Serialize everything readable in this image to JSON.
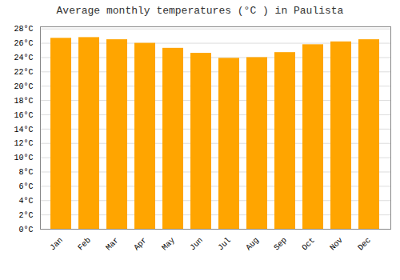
{
  "chart_data": {
    "type": "bar",
    "title": "Average monthly temperatures (°C ) in Paulista",
    "categories": [
      "Jan",
      "Feb",
      "Mar",
      "Apr",
      "May",
      "Jun",
      "Jul",
      "Aug",
      "Sep",
      "Oct",
      "Nov",
      "Dec"
    ],
    "values": [
      26.7,
      26.8,
      26.5,
      26.0,
      25.3,
      24.6,
      23.9,
      24.0,
      24.7,
      25.8,
      26.2,
      26.5
    ],
    "color": "#FFA500",
    "ylim": [
      0,
      28.3
    ],
    "yticks": [
      {
        "value": 0,
        "label": "0°C"
      },
      {
        "value": 2,
        "label": "2°C"
      },
      {
        "value": 4,
        "label": "4°C"
      },
      {
        "value": 6,
        "label": "6°C"
      },
      {
        "value": 8,
        "label": "8°C"
      },
      {
        "value": 10,
        "label": "10°C"
      },
      {
        "value": 12,
        "label": "12°C"
      },
      {
        "value": 14,
        "label": "14°C"
      },
      {
        "value": 16,
        "label": "16°C"
      },
      {
        "value": 18,
        "label": "18°C"
      },
      {
        "value": 20,
        "label": "20°C"
      },
      {
        "value": 22,
        "label": "22°C"
      },
      {
        "value": 24,
        "label": "24°C"
      },
      {
        "value": 26,
        "label": "26°C"
      },
      {
        "value": 28,
        "label": "28°C"
      }
    ],
    "grid": true
  }
}
